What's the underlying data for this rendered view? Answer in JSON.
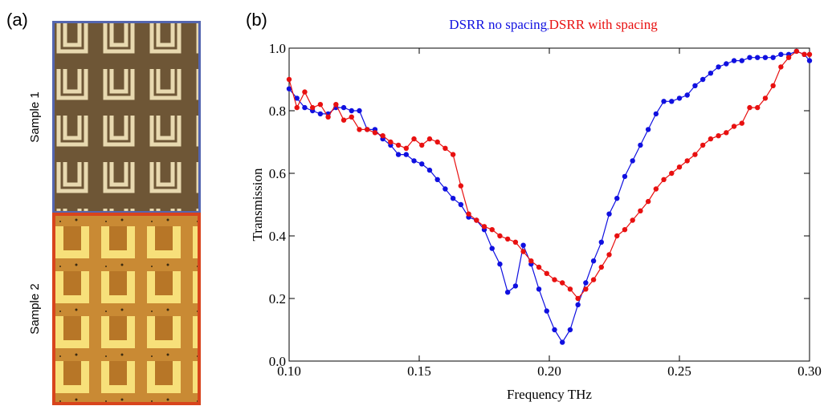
{
  "panel_a": {
    "label": "(a)",
    "samples": [
      "Sample 1",
      "Sample 2"
    ]
  },
  "chart_data": {
    "type": "line",
    "panel_label": "(b)",
    "legend_separator": ",",
    "xlabel": "Frequency THz",
    "ylabel": "Transmission",
    "xlim": [
      0.1,
      0.3
    ],
    "ylim": [
      0,
      1
    ],
    "xticks": [
      {
        "value": 0.1,
        "label": "0.10"
      },
      0.15,
      {
        "value": 0.2,
        "label": "0.20"
      },
      0.25,
      {
        "value": 0.3,
        "label": "0.30"
      }
    ],
    "yticks": [
      {
        "value": 0,
        "label": "0.0"
      },
      0.2,
      0.4,
      0.6,
      0.8,
      {
        "value": 1,
        "label": "1.0"
      }
    ],
    "x": [
      0.1,
      0.103,
      0.106,
      0.109,
      0.112,
      0.115,
      0.118,
      0.121,
      0.124,
      0.127,
      0.13,
      0.133,
      0.136,
      0.139,
      0.142,
      0.145,
      0.148,
      0.151,
      0.154,
      0.157,
      0.16,
      0.163,
      0.166,
      0.169,
      0.172,
      0.175,
      0.178,
      0.181,
      0.184,
      0.187,
      0.19,
      0.193,
      0.196,
      0.199,
      0.202,
      0.205,
      0.208,
      0.211,
      0.214,
      0.217,
      0.22,
      0.223,
      0.226,
      0.229,
      0.232,
      0.235,
      0.238,
      0.241,
      0.244,
      0.247,
      0.25,
      0.253,
      0.256,
      0.259,
      0.262,
      0.265,
      0.268,
      0.271,
      0.274,
      0.277,
      0.28,
      0.283,
      0.286,
      0.289,
      0.292,
      0.295,
      0.298,
      0.3
    ],
    "series": [
      {
        "name": "DSRR no spacing",
        "color": "#1010e0",
        "values": [
          0.87,
          0.84,
          0.81,
          0.8,
          0.79,
          0.79,
          0.81,
          0.81,
          0.8,
          0.8,
          0.74,
          0.74,
          0.71,
          0.69,
          0.66,
          0.66,
          0.64,
          0.63,
          0.61,
          0.58,
          0.55,
          0.52,
          0.5,
          0.46,
          0.45,
          0.42,
          0.36,
          0.31,
          0.22,
          0.24,
          0.37,
          0.31,
          0.23,
          0.16,
          0.1,
          0.06,
          0.1,
          0.18,
          0.25,
          0.32,
          0.38,
          0.47,
          0.52,
          0.59,
          0.64,
          0.69,
          0.74,
          0.79,
          0.83,
          0.83,
          0.84,
          0.85,
          0.88,
          0.9,
          0.92,
          0.94,
          0.95,
          0.96,
          0.96,
          0.97,
          0.97,
          0.97,
          0.97,
          0.98,
          0.98,
          0.99,
          0.98,
          0.96
        ]
      },
      {
        "name": "DSRR with spacing",
        "color": "#e81010",
        "values": [
          0.9,
          0.81,
          0.86,
          0.81,
          0.82,
          0.78,
          0.82,
          0.77,
          0.78,
          0.74,
          0.74,
          0.73,
          0.72,
          0.7,
          0.69,
          0.68,
          0.71,
          0.69,
          0.71,
          0.7,
          0.68,
          0.66,
          0.56,
          0.47,
          0.45,
          0.43,
          0.42,
          0.4,
          0.39,
          0.38,
          0.35,
          0.32,
          0.3,
          0.28,
          0.26,
          0.25,
          0.23,
          0.2,
          0.23,
          0.26,
          0.3,
          0.34,
          0.4,
          0.42,
          0.45,
          0.48,
          0.51,
          0.55,
          0.58,
          0.6,
          0.62,
          0.64,
          0.66,
          0.69,
          0.71,
          0.72,
          0.73,
          0.75,
          0.76,
          0.81,
          0.81,
          0.84,
          0.88,
          0.94,
          0.97,
          0.99,
          0.98,
          0.98
        ]
      }
    ]
  }
}
